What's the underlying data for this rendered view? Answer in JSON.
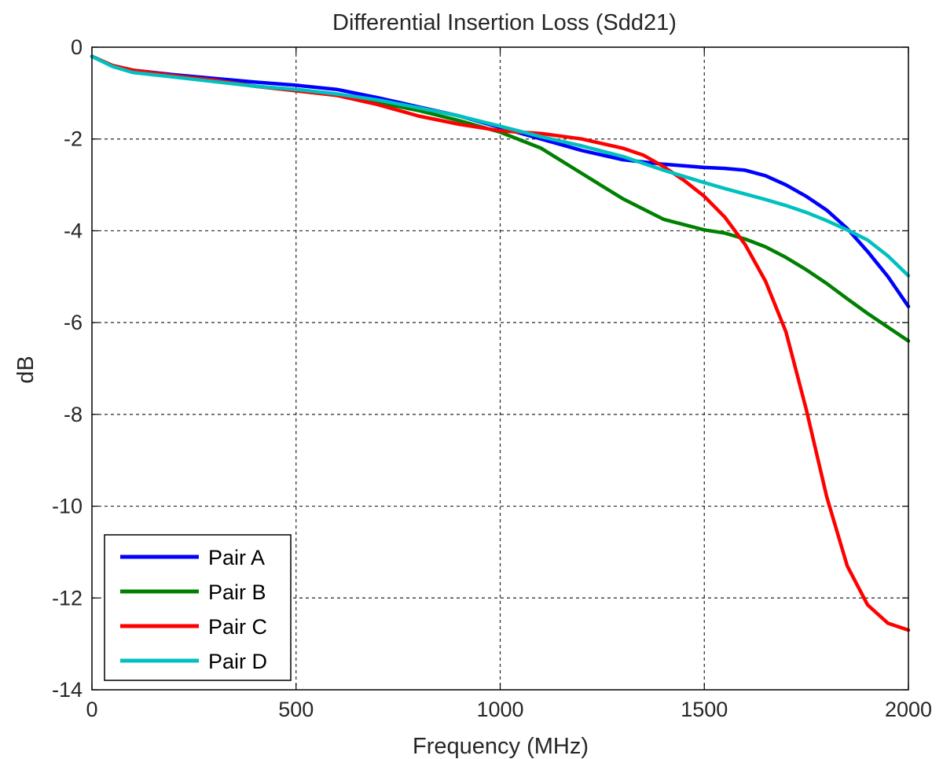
{
  "chart_data": {
    "type": "line",
    "title": "Differential Insertion Loss (Sdd21)",
    "xlabel": "Frequency (MHz)",
    "ylabel": "dB",
    "xlim": [
      0,
      2000
    ],
    "ylim": [
      -14,
      0
    ],
    "xticks": [
      "0",
      "500",
      "1000",
      "1500",
      "2000"
    ],
    "yticks": [
      "0",
      "-2",
      "-4",
      "-6",
      "-8",
      "-10",
      "-12",
      "-14"
    ],
    "grid": true,
    "legend_position": "bottom-left",
    "series": [
      {
        "name": "Pair A",
        "color": "#0000ff",
        "x": [
          0,
          50,
          100,
          200,
          300,
          400,
          500,
          600,
          700,
          800,
          900,
          1000,
          1100,
          1200,
          1300,
          1400,
          1500,
          1550,
          1600,
          1650,
          1700,
          1750,
          1800,
          1850,
          1900,
          1950,
          2000
        ],
        "y": [
          -0.2,
          -0.4,
          -0.5,
          -0.6,
          -0.68,
          -0.76,
          -0.83,
          -0.92,
          -1.1,
          -1.3,
          -1.5,
          -1.75,
          -2.0,
          -2.25,
          -2.45,
          -2.55,
          -2.62,
          -2.64,
          -2.68,
          -2.8,
          -3.0,
          -3.25,
          -3.55,
          -3.95,
          -4.45,
          -5.0,
          -5.65
        ]
      },
      {
        "name": "Pair B",
        "color": "#008000",
        "x": [
          0,
          50,
          100,
          200,
          300,
          400,
          500,
          600,
          700,
          800,
          900,
          1000,
          1100,
          1200,
          1300,
          1400,
          1500,
          1550,
          1600,
          1650,
          1700,
          1750,
          1800,
          1850,
          1900,
          1950,
          2000
        ],
        "y": [
          -0.2,
          -0.4,
          -0.5,
          -0.62,
          -0.72,
          -0.85,
          -0.95,
          -1.05,
          -1.2,
          -1.38,
          -1.6,
          -1.85,
          -2.2,
          -2.75,
          -3.3,
          -3.75,
          -3.98,
          -4.05,
          -4.18,
          -4.35,
          -4.58,
          -4.85,
          -5.15,
          -5.48,
          -5.8,
          -6.1,
          -6.4
        ]
      },
      {
        "name": "Pair C",
        "color": "#ff0000",
        "x": [
          0,
          50,
          100,
          200,
          300,
          400,
          500,
          600,
          700,
          800,
          900,
          1000,
          1100,
          1200,
          1300,
          1350,
          1400,
          1450,
          1500,
          1550,
          1600,
          1650,
          1700,
          1750,
          1800,
          1850,
          1900,
          1950,
          2000
        ],
        "y": [
          -0.2,
          -0.4,
          -0.5,
          -0.62,
          -0.72,
          -0.85,
          -0.95,
          -1.05,
          -1.25,
          -1.5,
          -1.68,
          -1.82,
          -1.88,
          -2.0,
          -2.2,
          -2.35,
          -2.6,
          -2.9,
          -3.25,
          -3.7,
          -4.3,
          -5.1,
          -6.2,
          -7.9,
          -9.8,
          -11.3,
          -12.15,
          -12.55,
          -12.7
        ]
      },
      {
        "name": "Pair D",
        "color": "#00c0c0",
        "x": [
          0,
          50,
          100,
          200,
          300,
          400,
          500,
          600,
          700,
          800,
          900,
          1000,
          1100,
          1200,
          1300,
          1400,
          1500,
          1550,
          1600,
          1650,
          1700,
          1750,
          1800,
          1850,
          1900,
          1950,
          2000
        ],
        "y": [
          -0.2,
          -0.42,
          -0.55,
          -0.65,
          -0.75,
          -0.85,
          -0.92,
          -1.02,
          -1.15,
          -1.32,
          -1.5,
          -1.72,
          -1.95,
          -2.15,
          -2.38,
          -2.68,
          -2.95,
          -3.08,
          -3.2,
          -3.32,
          -3.45,
          -3.6,
          -3.78,
          -3.98,
          -4.2,
          -4.55,
          -4.98
        ]
      }
    ]
  }
}
